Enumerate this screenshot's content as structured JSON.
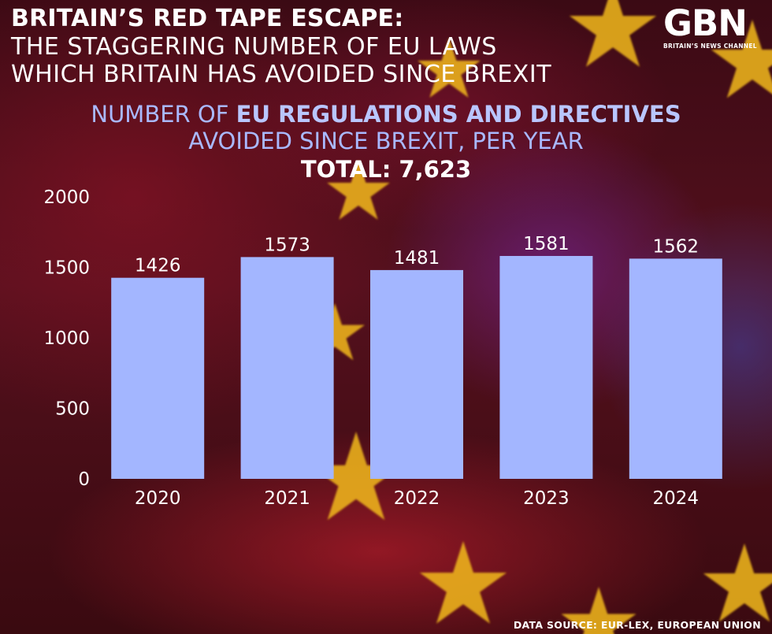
{
  "header": {
    "title_line1": "BRITAIN’S RED TAPE ESCAPE:",
    "title_line2": "THE STAGGERING NUMBER OF EU LAWS",
    "title_line3": "WHICH BRITAIN HAS AVOIDED SINCE BREXIT"
  },
  "logo": {
    "mark": "GBN",
    "tagline": "BRITAIN’S NEWS CHANNEL"
  },
  "subtitle": {
    "line1_prefix": "NUMBER OF ",
    "line1_bold": "EU REGULATIONS AND DIRECTIVES",
    "line2": "AVOIDED SINCE BREXIT, PER YEAR",
    "total": "TOTAL: 7,623"
  },
  "source": "DATA SOURCE: EUR-LEX, EUROPEAN UNION",
  "colors": {
    "bar": "#a3b6ff",
    "text": "#ffffff",
    "subtitle": "#a9b9ff",
    "star": "#f2b91c"
  },
  "chart_data": {
    "type": "bar",
    "categories": [
      "2020",
      "2021",
      "2022",
      "2023",
      "2024"
    ],
    "values": [
      1426,
      1573,
      1481,
      1581,
      1562
    ],
    "ylim": [
      0,
      2000
    ],
    "yticks": [
      "0",
      "500",
      "1000",
      "1500",
      "2000"
    ],
    "title": "NUMBER OF EU REGULATIONS AND DIRECTIVES AVOIDED SINCE BREXIT, PER YEAR",
    "xlabel": "",
    "ylabel": "",
    "grid": false,
    "legend": "none",
    "data_labels": true
  }
}
